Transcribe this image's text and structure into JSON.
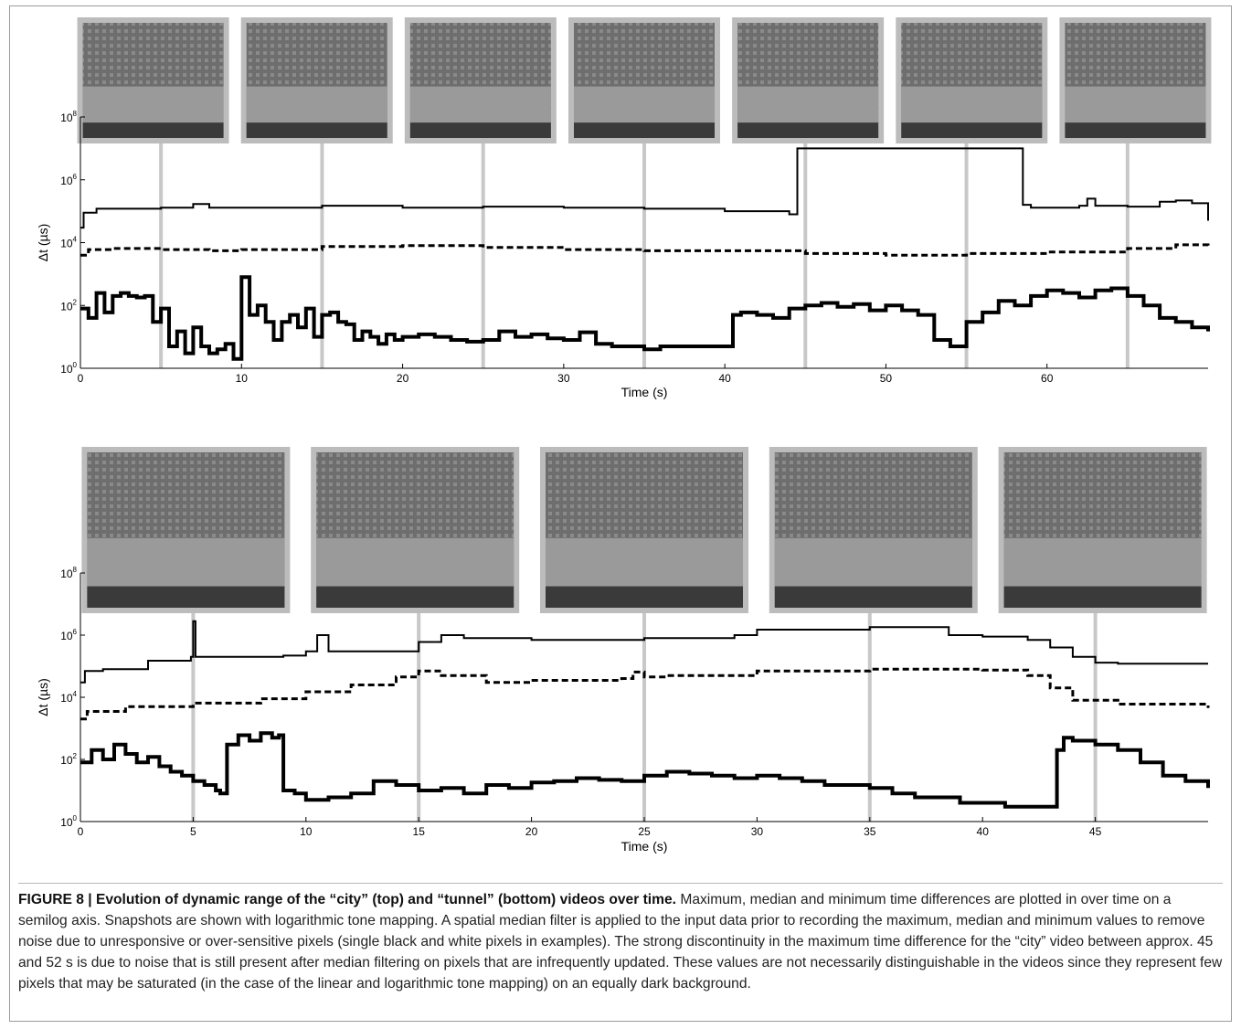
{
  "caption": {
    "label": "FIGURE 8 | Evolution of dynamic range of the “city” (top) and “tunnel” (bottom) videos over time.",
    "text": " Maximum, median and minimum time differences are plotted in over time on a semilog axis. Snapshots are shown with logarithmic tone mapping. A spatial median filter is applied to the input data prior to recording the maximum, median and minimum values to remove noise due to unresponsive or over-sensitive pixels (single black and white pixels in examples). The strong discontinuity in the maximum time difference for the “city” video between approx. 45 and 52 s is due to noise that is still present after median filtering on pixels that are infrequently updated. These values are not necessarily distinguishable in the videos since they represent few pixels that may be saturated (in the case of the linear and logarithmic tone mapping) on an equally dark background."
  },
  "colors": {
    "line": "#000000",
    "marker": "#c8c8c8",
    "frame": "#bcbcbc"
  },
  "chart_data": [
    {
      "type": "line",
      "name_key": "city",
      "xlabel": "Time (s)",
      "ylabel": "Δt (µs)",
      "yscale": "log",
      "xlim": [
        0,
        70
      ],
      "ylim": [
        1,
        100000000
      ],
      "xticks": [
        0,
        10,
        20,
        30,
        40,
        50,
        60
      ],
      "yticks": [
        {
          "base": "10",
          "exp": "0",
          "value": 1
        },
        {
          "base": "10",
          "exp": "2",
          "value": 100
        },
        {
          "base": "10",
          "exp": "4",
          "value": 10000
        },
        {
          "base": "10",
          "exp": "6",
          "value": 1000000
        },
        {
          "base": "10",
          "exp": "8",
          "value": 100000000
        }
      ],
      "snapshot_times": [
        5,
        15,
        25,
        35,
        45,
        55,
        65
      ],
      "series": [
        {
          "style": "solid-thin",
          "x": [
            0,
            0.2,
            1,
            5,
            7,
            8,
            10,
            15,
            20,
            25,
            30,
            35,
            40,
            44,
            44.5,
            50,
            55,
            58,
            58.5,
            59,
            62,
            62.5,
            63,
            65,
            67,
            68,
            69,
            70
          ],
          "y": [
            30000,
            90000,
            120000,
            130000,
            170000,
            130000,
            130000,
            150000,
            130000,
            140000,
            130000,
            120000,
            100000,
            80000,
            10000000,
            10000000,
            10000000,
            10000000,
            160000,
            130000,
            150000,
            250000,
            150000,
            140000,
            200000,
            220000,
            180000,
            50000
          ]
        },
        {
          "style": "dashed",
          "x": [
            0,
            0.5,
            2,
            5,
            8,
            10,
            15,
            20,
            25,
            30,
            35,
            40,
            45,
            50,
            55,
            60,
            65,
            68,
            70
          ],
          "y": [
            4000,
            6000,
            6500,
            6000,
            5500,
            6000,
            7500,
            8000,
            7000,
            6000,
            5500,
            5500,
            4500,
            4000,
            4500,
            5000,
            6500,
            8500,
            7500
          ]
        },
        {
          "style": "solid-thick",
          "x": [
            0,
            0.5,
            1,
            1.5,
            2,
            2.5,
            3,
            3.5,
            4,
            4.5,
            5,
            5.5,
            6,
            6.5,
            7,
            7.5,
            8,
            8.5,
            9,
            9.5,
            10,
            10.5,
            11,
            11.5,
            12,
            12.5,
            13,
            13.5,
            14,
            14.5,
            15,
            15.5,
            16,
            16.5,
            17,
            17.5,
            18,
            18.5,
            19,
            19.5,
            20,
            21,
            22,
            23,
            24,
            25,
            26,
            27,
            28,
            29,
            30,
            31,
            32,
            33,
            34,
            35,
            36,
            37,
            38,
            39,
            40,
            40.5,
            41,
            42,
            43,
            44,
            45,
            46,
            47,
            48,
            49,
            50,
            51,
            52,
            53,
            54,
            55,
            56,
            57,
            58,
            59,
            60,
            61,
            62,
            63,
            64,
            65,
            66,
            67,
            68,
            69,
            70
          ],
          "y": [
            80,
            40,
            250,
            60,
            200,
            250,
            200,
            180,
            200,
            30,
            80,
            5,
            15,
            3,
            20,
            5,
            3,
            4,
            6,
            2,
            800,
            50,
            100,
            30,
            8,
            30,
            50,
            20,
            80,
            10,
            50,
            60,
            30,
            25,
            8,
            15,
            10,
            6,
            12,
            8,
            10,
            12,
            10,
            8,
            7,
            8,
            15,
            10,
            12,
            9,
            8,
            14,
            6,
            5,
            5,
            4,
            5,
            5,
            5,
            5,
            5,
            50,
            60,
            50,
            40,
            80,
            100,
            120,
            90,
            110,
            70,
            100,
            70,
            50,
            8,
            5,
            30,
            60,
            140,
            100,
            200,
            300,
            250,
            180,
            300,
            350,
            200,
            100,
            40,
            30,
            20,
            15
          ]
        }
      ]
    },
    {
      "type": "line",
      "name_key": "tunnel",
      "xlabel": "Time (s)",
      "ylabel": "Δt (µs)",
      "yscale": "log",
      "xlim": [
        0,
        50
      ],
      "ylim": [
        1,
        100000000
      ],
      "xticks": [
        0,
        5,
        10,
        15,
        20,
        25,
        30,
        35,
        40,
        45
      ],
      "yticks": [
        {
          "base": "10",
          "exp": "0",
          "value": 1
        },
        {
          "base": "10",
          "exp": "2",
          "value": 100
        },
        {
          "base": "10",
          "exp": "4",
          "value": 10000
        },
        {
          "base": "10",
          "exp": "6",
          "value": 1000000
        },
        {
          "base": "10",
          "exp": "8",
          "value": 100000000
        }
      ],
      "snapshot_times": [
        5,
        15,
        25,
        35,
        45
      ],
      "series": [
        {
          "style": "solid-thin",
          "x": [
            0,
            0.2,
            1,
            3,
            4.9,
            5,
            5.1,
            6,
            9,
            10,
            10.5,
            11,
            12,
            15,
            16,
            17,
            20,
            25,
            29,
            30,
            35,
            38,
            38.5,
            40,
            42,
            43,
            44,
            45,
            46,
            50
          ],
          "y": [
            30000,
            70000,
            80000,
            150000,
            200000,
            2800000,
            200000,
            200000,
            220000,
            300000,
            1000000,
            300000,
            300000,
            600000,
            1000000,
            800000,
            700000,
            800000,
            1000000,
            1500000,
            1800000,
            1800000,
            1000000,
            900000,
            700000,
            400000,
            200000,
            130000,
            120000,
            120000
          ]
        },
        {
          "style": "dashed",
          "x": [
            0,
            0.3,
            2,
            5,
            8,
            10,
            12,
            14,
            15,
            16,
            18,
            20,
            24,
            24.5,
            25,
            26,
            30,
            35,
            40,
            42,
            43,
            44,
            46,
            50
          ],
          "y": [
            2000,
            3500,
            5000,
            6500,
            9000,
            15000,
            25000,
            45000,
            70000,
            50000,
            30000,
            35000,
            40000,
            65000,
            45000,
            50000,
            70000,
            80000,
            75000,
            50000,
            20000,
            8000,
            6000,
            4500
          ]
        },
        {
          "style": "solid-thick",
          "x": [
            0,
            0.5,
            1,
            1.5,
            2,
            2.5,
            3,
            3.5,
            4,
            4.5,
            5,
            5.5,
            6,
            6.2,
            6.5,
            7,
            7.5,
            8,
            8.5,
            8.8,
            9,
            9.5,
            10,
            11,
            12,
            13,
            14,
            15,
            16,
            17,
            18,
            19,
            20,
            21,
            22,
            23,
            24,
            25,
            26,
            27,
            28,
            29,
            30,
            31,
            32,
            33,
            34,
            35,
            36,
            37,
            38,
            39,
            40,
            41,
            42,
            43,
            43.3,
            43.6,
            44,
            45,
            46,
            47,
            48,
            49,
            50
          ],
          "y": [
            80,
            200,
            100,
            300,
            150,
            80,
            120,
            60,
            40,
            30,
            20,
            15,
            10,
            8,
            300,
            600,
            400,
            700,
            500,
            600,
            10,
            8,
            5,
            6,
            8,
            20,
            15,
            10,
            12,
            8,
            15,
            12,
            18,
            20,
            25,
            22,
            20,
            30,
            40,
            35,
            30,
            25,
            30,
            25,
            20,
            15,
            15,
            12,
            8,
            6,
            6,
            4,
            4,
            3,
            3,
            3,
            200,
            500,
            400,
            300,
            200,
            80,
            30,
            20,
            12
          ]
        }
      ]
    }
  ]
}
